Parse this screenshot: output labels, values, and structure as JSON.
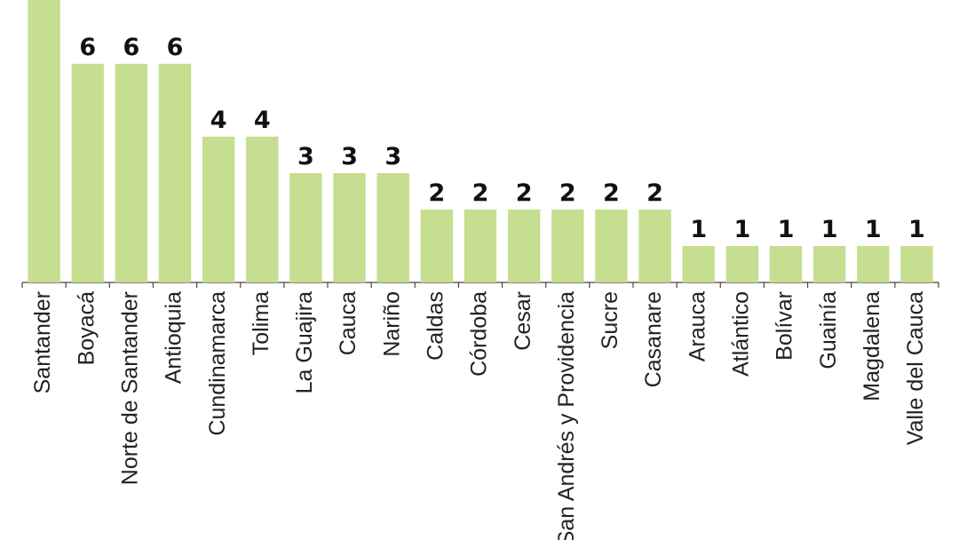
{
  "chart_data": {
    "type": "bar",
    "categories": [
      "Santander",
      "Boyacá",
      "Norte de Santander",
      "Antioquia",
      "Cundinamarca",
      "Tolima",
      "La Guajira",
      "Cauca",
      "Nariño",
      "Caldas",
      "Córdoba",
      "Cesar",
      "San Andrés y Providencia",
      "Sucre",
      "Casanare",
      "Arauca",
      "Atlántico",
      "Bolívar",
      "Guainía",
      "Magdalena",
      "Valle del Cauca"
    ],
    "values": [
      8,
      6,
      6,
      6,
      4,
      4,
      3,
      3,
      3,
      2,
      2,
      2,
      2,
      2,
      2,
      1,
      1,
      1,
      1,
      1,
      1
    ],
    "color": "#c5de8f",
    "ylim": [
      0,
      7.75
    ]
  }
}
